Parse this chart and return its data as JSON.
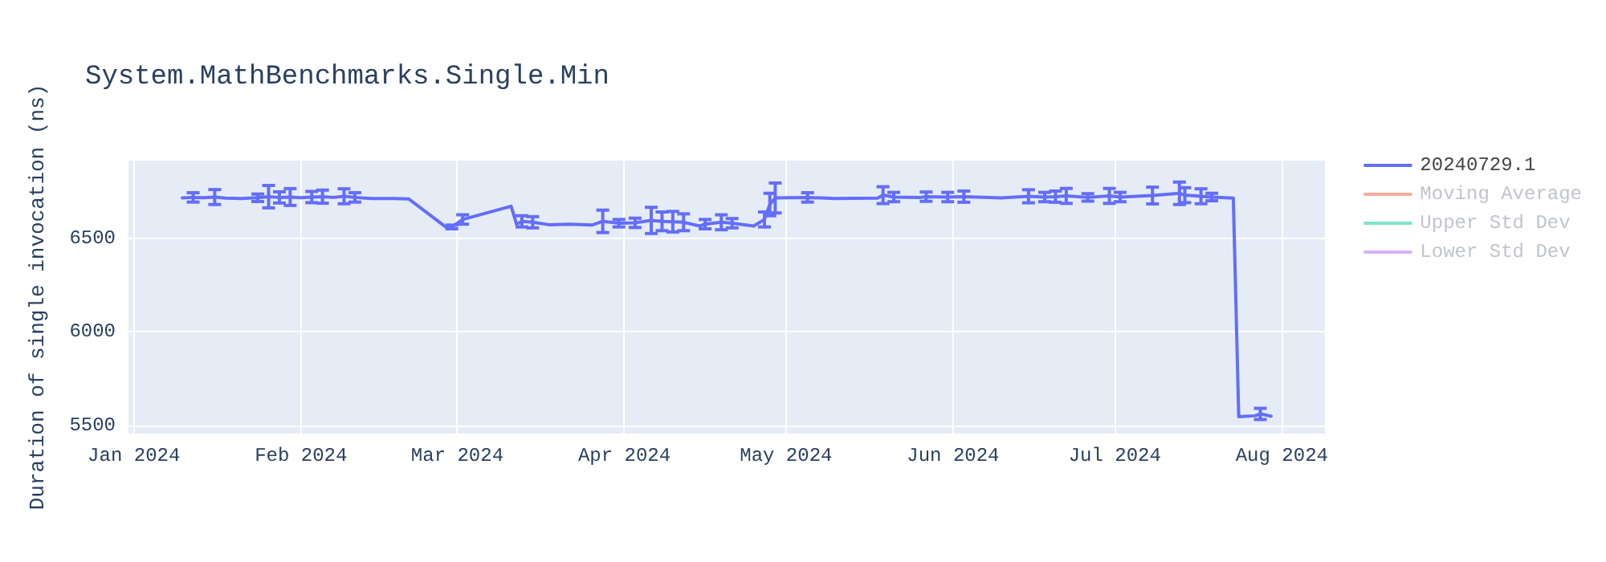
{
  "chart_data": {
    "type": "line",
    "title": "System.MathBenchmarks.Single.Min",
    "ylabel": "Duration of single invocation (ns)",
    "x": [
      "2024-01-10",
      "2024-01-12",
      "2024-01-14",
      "2024-01-16",
      "2024-01-18",
      "2024-01-21",
      "2024-01-24",
      "2024-01-26",
      "2024-01-28",
      "2024-01-30",
      "2024-02-01",
      "2024-02-03",
      "2024-02-05",
      "2024-02-07",
      "2024-02-09",
      "2024-02-11",
      "2024-02-14",
      "2024-02-18",
      "2024-02-21",
      "2024-02-28",
      "2024-02-29",
      "2024-03-02",
      "2024-03-11",
      "2024-03-12",
      "2024-03-13",
      "2024-03-15",
      "2024-03-18",
      "2024-03-22",
      "2024-03-26",
      "2024-03-28",
      "2024-03-31",
      "2024-04-03",
      "2024-04-06",
      "2024-04-08",
      "2024-04-10",
      "2024-04-12",
      "2024-04-15",
      "2024-04-16",
      "2024-04-19",
      "2024-04-21",
      "2024-04-25",
      "2024-04-27",
      "2024-04-28",
      "2024-04-29",
      "2024-05-05",
      "2024-05-10",
      "2024-05-18",
      "2024-05-19",
      "2024-05-21",
      "2024-05-26",
      "2024-05-27",
      "2024-05-31",
      "2024-06-03",
      "2024-06-10",
      "2024-06-15",
      "2024-06-18",
      "2024-06-20",
      "2024-06-22",
      "2024-06-26",
      "2024-06-30",
      "2024-07-02",
      "2024-07-08",
      "2024-07-13",
      "2024-07-14",
      "2024-07-17",
      "2024-07-19",
      "2024-07-23",
      "2024-07-24",
      "2024-07-27",
      "2024-07-28",
      "2024-07-30"
    ],
    "series": [
      {
        "name": "20240729.1",
        "color": "#636efa",
        "values": [
          6715,
          6718,
          6716,
          6720,
          6714,
          6712,
          6716,
          6722,
          6718,
          6720,
          6716,
          6720,
          6722,
          6718,
          6724,
          6718,
          6712,
          6712,
          6710,
          6557,
          6560,
          6600,
          6671,
          6575,
          6590,
          6585,
          6572,
          6575,
          6570,
          6590,
          6580,
          6582,
          6595,
          6590,
          6588,
          6585,
          6565,
          6575,
          6585,
          6580,
          6565,
          6600,
          6680,
          6715,
          6718,
          6712,
          6714,
          6730,
          6720,
          6718,
          6722,
          6720,
          6722,
          6715,
          6724,
          6720,
          6722,
          6726,
          6718,
          6726,
          6720,
          6728,
          6740,
          6730,
          6724,
          6720,
          6714,
          5545,
          5550,
          5560,
          5548
        ],
        "errors": [
          null,
          25,
          null,
          40,
          null,
          null,
          20,
          60,
          30,
          45,
          null,
          30,
          35,
          null,
          40,
          25,
          null,
          null,
          null,
          null,
          10,
          25,
          null,
          null,
          30,
          30,
          null,
          null,
          null,
          60,
          20,
          25,
          70,
          50,
          55,
          45,
          null,
          25,
          40,
          25,
          null,
          40,
          60,
          80,
          25,
          null,
          null,
          45,
          25,
          null,
          25,
          25,
          30,
          null,
          35,
          25,
          30,
          40,
          20,
          40,
          25,
          45,
          60,
          40,
          40,
          20,
          null,
          null,
          null,
          30,
          null
        ]
      },
      {
        "name": "Moving Average",
        "color": "#ef553b",
        "values": [
          null,
          null,
          null,
          null,
          null,
          null,
          null,
          null,
          null,
          null,
          null,
          null,
          null,
          null,
          null,
          null,
          null,
          null,
          null,
          null,
          null,
          null,
          null,
          null,
          null,
          null,
          null,
          null,
          null,
          null,
          null,
          null,
          null,
          null,
          null,
          null,
          null,
          null,
          null,
          null,
          null,
          null,
          null,
          null,
          null,
          null,
          null,
          null,
          null,
          null,
          null,
          null,
          null,
          null,
          null,
          null,
          null,
          null,
          null,
          null,
          null,
          null,
          null,
          null,
          null,
          null,
          null,
          null,
          null,
          null,
          null
        ]
      },
      {
        "name": "Upper Std Dev",
        "color": "#00cc96",
        "values": [
          null,
          null,
          null,
          null,
          null,
          null,
          null,
          null,
          null,
          null,
          null,
          null,
          null,
          null,
          null,
          null,
          null,
          null,
          null,
          null,
          null,
          null,
          null,
          null,
          null,
          null,
          null,
          null,
          null,
          null,
          null,
          null,
          null,
          null,
          null,
          null,
          null,
          null,
          null,
          null,
          null,
          null,
          null,
          null,
          null,
          null,
          null,
          null,
          null,
          null,
          null,
          null,
          null,
          null,
          null,
          null,
          null,
          null,
          null,
          null,
          null,
          null,
          null,
          null,
          null,
          null,
          null,
          null,
          null,
          null,
          null
        ]
      },
      {
        "name": "Lower Std Dev",
        "color": "#ab63fa",
        "values": [
          null,
          null,
          null,
          null,
          null,
          null,
          null,
          null,
          null,
          null,
          null,
          null,
          null,
          null,
          null,
          null,
          null,
          null,
          null,
          null,
          null,
          null,
          null,
          null,
          null,
          null,
          null,
          null,
          null,
          null,
          null,
          null,
          null,
          null,
          null,
          null,
          null,
          null,
          null,
          null,
          null,
          null,
          null,
          null,
          null,
          null,
          null,
          null,
          null,
          null,
          null,
          null,
          null,
          null,
          null,
          null,
          null,
          null,
          null,
          null,
          null,
          null,
          null,
          null,
          null,
          null,
          null,
          null,
          null,
          null,
          null
        ]
      }
    ],
    "xlim": [
      "2023-12-31",
      "2024-08-09"
    ],
    "xticks": [
      {
        "value": "2024-01-01",
        "label": "Jan 2024"
      },
      {
        "value": "2024-02-01",
        "label": "Feb 2024"
      },
      {
        "value": "2024-03-01",
        "label": "Mar 2024"
      },
      {
        "value": "2024-04-01",
        "label": "Apr 2024"
      },
      {
        "value": "2024-05-01",
        "label": "May 2024"
      },
      {
        "value": "2024-06-01",
        "label": "Jun 2024"
      },
      {
        "value": "2024-07-01",
        "label": "Jul 2024"
      },
      {
        "value": "2024-08-01",
        "label": "Aug 2024"
      }
    ],
    "ylim": [
      5455,
      6915
    ],
    "yticks": [
      5500,
      6000,
      6500
    ],
    "grid": true,
    "legend": "top right",
    "marker": "none",
    "line_style": "solid"
  }
}
